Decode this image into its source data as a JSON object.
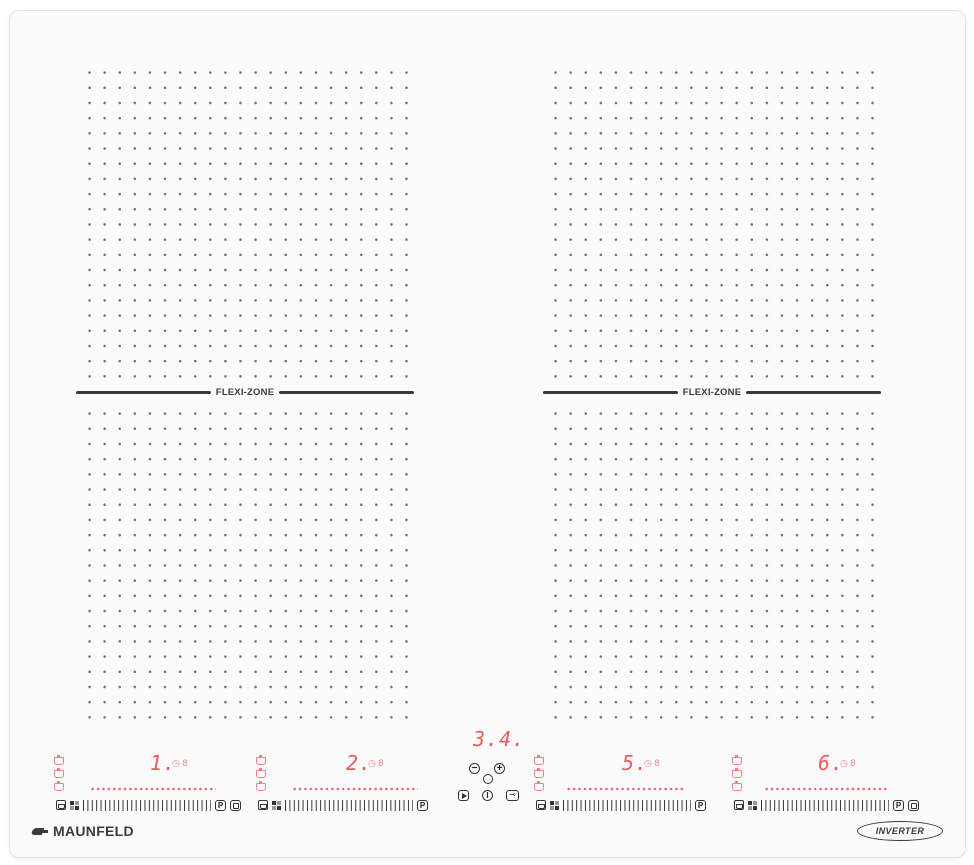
{
  "flexi_label": "FLEXI-ZONE",
  "timer_display": "3.4.",
  "zones": [
    {
      "digit": "1.",
      "mini": "◷ 8"
    },
    {
      "digit": "2.",
      "mini": "◷ 8"
    },
    {
      "digit": "5.",
      "mini": "◷ 8"
    },
    {
      "digit": "6.",
      "mini": "◷ 8"
    }
  ],
  "center": {
    "minus": "−",
    "plus": "+",
    "power": "I",
    "lock": "⊸"
  },
  "pbutton": "P",
  "brand": "MAUNFELD",
  "badge": "INVERTER",
  "colors": {
    "accent": "#f05a5a",
    "print": "#3a3a42",
    "glass": "#fbfbfc"
  }
}
